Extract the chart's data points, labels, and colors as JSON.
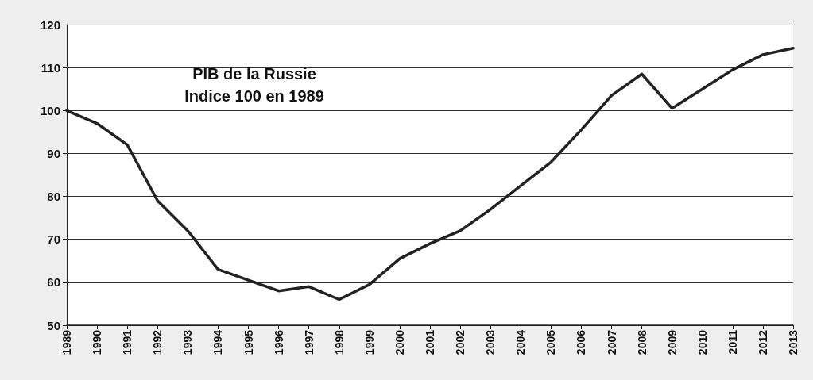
{
  "chart_data": {
    "type": "line",
    "title": "PIB de la Russie",
    "subtitle": "Indice 100 en 1989",
    "categories": [
      "1989",
      "1990",
      "1991",
      "1992",
      "1993",
      "1994",
      "1995",
      "1996",
      "1997",
      "1998",
      "1999",
      "2000",
      "2001",
      "2002",
      "2003",
      "2004",
      "2005",
      "2006",
      "2007",
      "2008",
      "2009",
      "2010",
      "2011",
      "2012",
      "2013"
    ],
    "series": [
      {
        "color": "#222222",
        "values": [
          100,
          97,
          92,
          79,
          72,
          63,
          60.5,
          58,
          59,
          56,
          59.5,
          65.5,
          69,
          72,
          77,
          82.5,
          88,
          95.5,
          103.5,
          108.5,
          100.5,
          105,
          109.5,
          113,
          114.5
        ]
      }
    ],
    "ylim": [
      50,
      120
    ],
    "yticks": [
      50,
      60,
      70,
      80,
      90,
      100,
      110,
      120
    ],
    "grid": "y",
    "marker": "none",
    "line_style": "solid"
  }
}
